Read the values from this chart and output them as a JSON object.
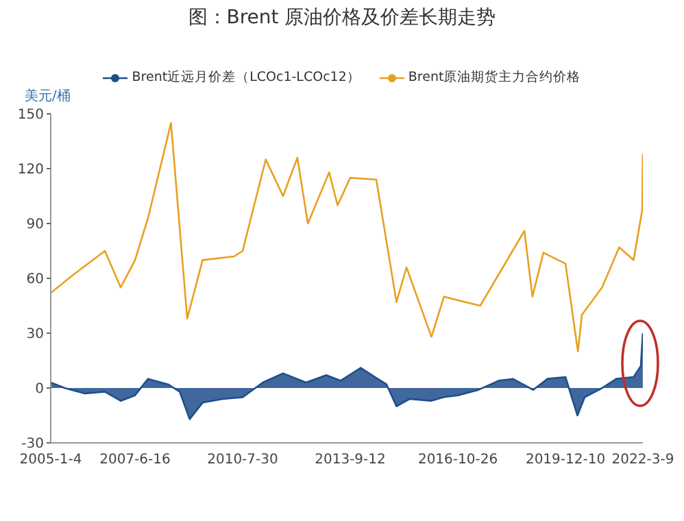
{
  "chart_data": {
    "type": "line",
    "title": "图：Brent 原油价格及价差长期走势",
    "ylabel": "美元/桶",
    "series": [
      {
        "name": "Brent近远月价差（LCOc1-LCOc12）",
        "type": "area",
        "color": "#1f4e8c",
        "x": [
          "2005-01-04",
          "2005-06-01",
          "2006-01-01",
          "2006-08-01",
          "2007-01-15",
          "2007-06-16",
          "2007-11-01",
          "2008-06-01",
          "2008-10-01",
          "2009-01-15",
          "2009-06-01",
          "2010-01-01",
          "2010-07-30",
          "2011-03-01",
          "2011-10-01",
          "2012-06-01",
          "2013-01-01",
          "2013-06-01",
          "2014-01-01",
          "2014-06-01",
          "2014-10-01",
          "2015-01-15",
          "2015-06-01",
          "2016-01-15",
          "2016-06-01",
          "2016-10-26",
          "2017-06-01",
          "2018-01-01",
          "2018-06-01",
          "2019-01-01",
          "2019-06-01",
          "2019-12-10",
          "2020-04-15",
          "2020-07-01",
          "2021-01-01",
          "2021-06-01",
          "2021-12-01",
          "2022-02-15",
          "2022-03-08"
        ],
        "values": [
          3,
          0,
          -3,
          -2,
          -7,
          -4,
          5,
          2,
          -2,
          -17,
          -8,
          -6,
          -5,
          3,
          8,
          3,
          7,
          4,
          11,
          6,
          2,
          -10,
          -6,
          -7,
          -5,
          -4,
          -1,
          4,
          5,
          -1,
          5,
          6,
          -15,
          -5,
          0,
          5,
          6,
          12,
          30
        ]
      },
      {
        "name": "Brent原油期货主力合约价格",
        "color": "#e8a020",
        "x": [
          "2005-01-04",
          "2005-09-01",
          "2006-08-01",
          "2007-01-15",
          "2007-06-16",
          "2007-11-01",
          "2008-07-01",
          "2008-12-20",
          "2009-06-01",
          "2010-05-01",
          "2010-07-30",
          "2011-04-01",
          "2011-10-01",
          "2012-03-01",
          "2012-06-20",
          "2013-02-01",
          "2013-05-01",
          "2013-09-12",
          "2014-06-15",
          "2015-01-15",
          "2015-05-01",
          "2016-01-20",
          "2016-06-01",
          "2016-10-26",
          "2017-06-20",
          "2018-10-01",
          "2018-12-25",
          "2019-04-20",
          "2019-12-10",
          "2020-04-20",
          "2020-06-01",
          "2021-01-01",
          "2021-07-01",
          "2021-12-01",
          "2022-03-01",
          "2022-03-08"
        ],
        "values": [
          52,
          62,
          75,
          55,
          70,
          93,
          145,
          38,
          70,
          72,
          75,
          125,
          105,
          126,
          90,
          118,
          100,
          115,
          114,
          47,
          66,
          28,
          50,
          48,
          45,
          86,
          50,
          74,
          68,
          20,
          40,
          55,
          77,
          70,
          97,
          128
        ]
      }
    ],
    "xlim": [
      "2005-01-04",
      "2022-03-09"
    ],
    "xticks": [
      {
        "value": "2005-01-04",
        "label": "2005-1-4"
      },
      {
        "value": "2007-06-16",
        "label": "2007-6-16"
      },
      {
        "value": "2010-07-30",
        "label": "2010-7-30"
      },
      {
        "value": "2013-09-12",
        "label": "2013-9-12"
      },
      {
        "value": "2016-10-26",
        "label": "2016-10-26"
      },
      {
        "value": "2019-12-10",
        "label": "2019-12-10"
      },
      {
        "value": "2022-03-09",
        "label": "2022-3-9"
      }
    ],
    "ylim": [
      -30,
      150
    ],
    "yticks": [
      -30,
      0,
      30,
      60,
      90,
      120,
      150
    ],
    "legend": "top",
    "grid": false,
    "marker": "none",
    "line_style": "solid"
  }
}
